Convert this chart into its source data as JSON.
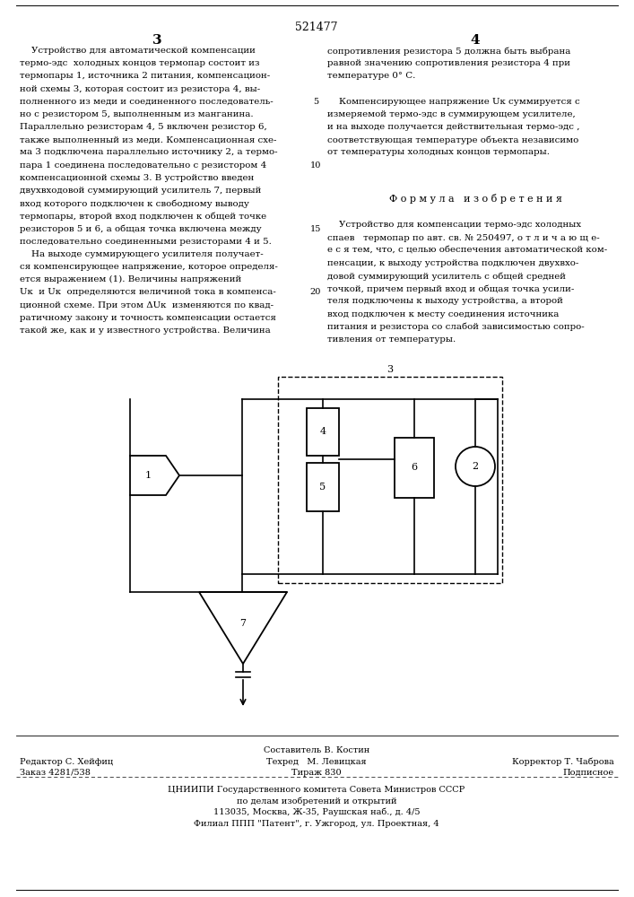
{
  "patent_number": "521477",
  "col_left_num": "3",
  "col_right_num": "4",
  "bg_color": "#f5f5f0",
  "text_color": "#1a1a1a",
  "footer_line1": "Составитель В. Костин",
  "footer_line2_left": "Редактор С. Хейфиц",
  "footer_line2_mid": "Техред   М. Левицкая",
  "footer_line2_right": "Корректор Т. Чаброва",
  "footer_line3_left": "Заказ 4281/538",
  "footer_line3_mid": "Тираж 830",
  "footer_line3_right": "Подписное",
  "footer_line4": "ЦНИИПИ Государственного комитета Совета Министров СССР",
  "footer_line5": "по делам изобретений и открытий",
  "footer_line6": "113035, Москва, Ж-35, Раушская наб., д. 4/5",
  "footer_line7": "Филиал ППП \"Патент\", г. Ужгород, ул. Проектная, 4"
}
